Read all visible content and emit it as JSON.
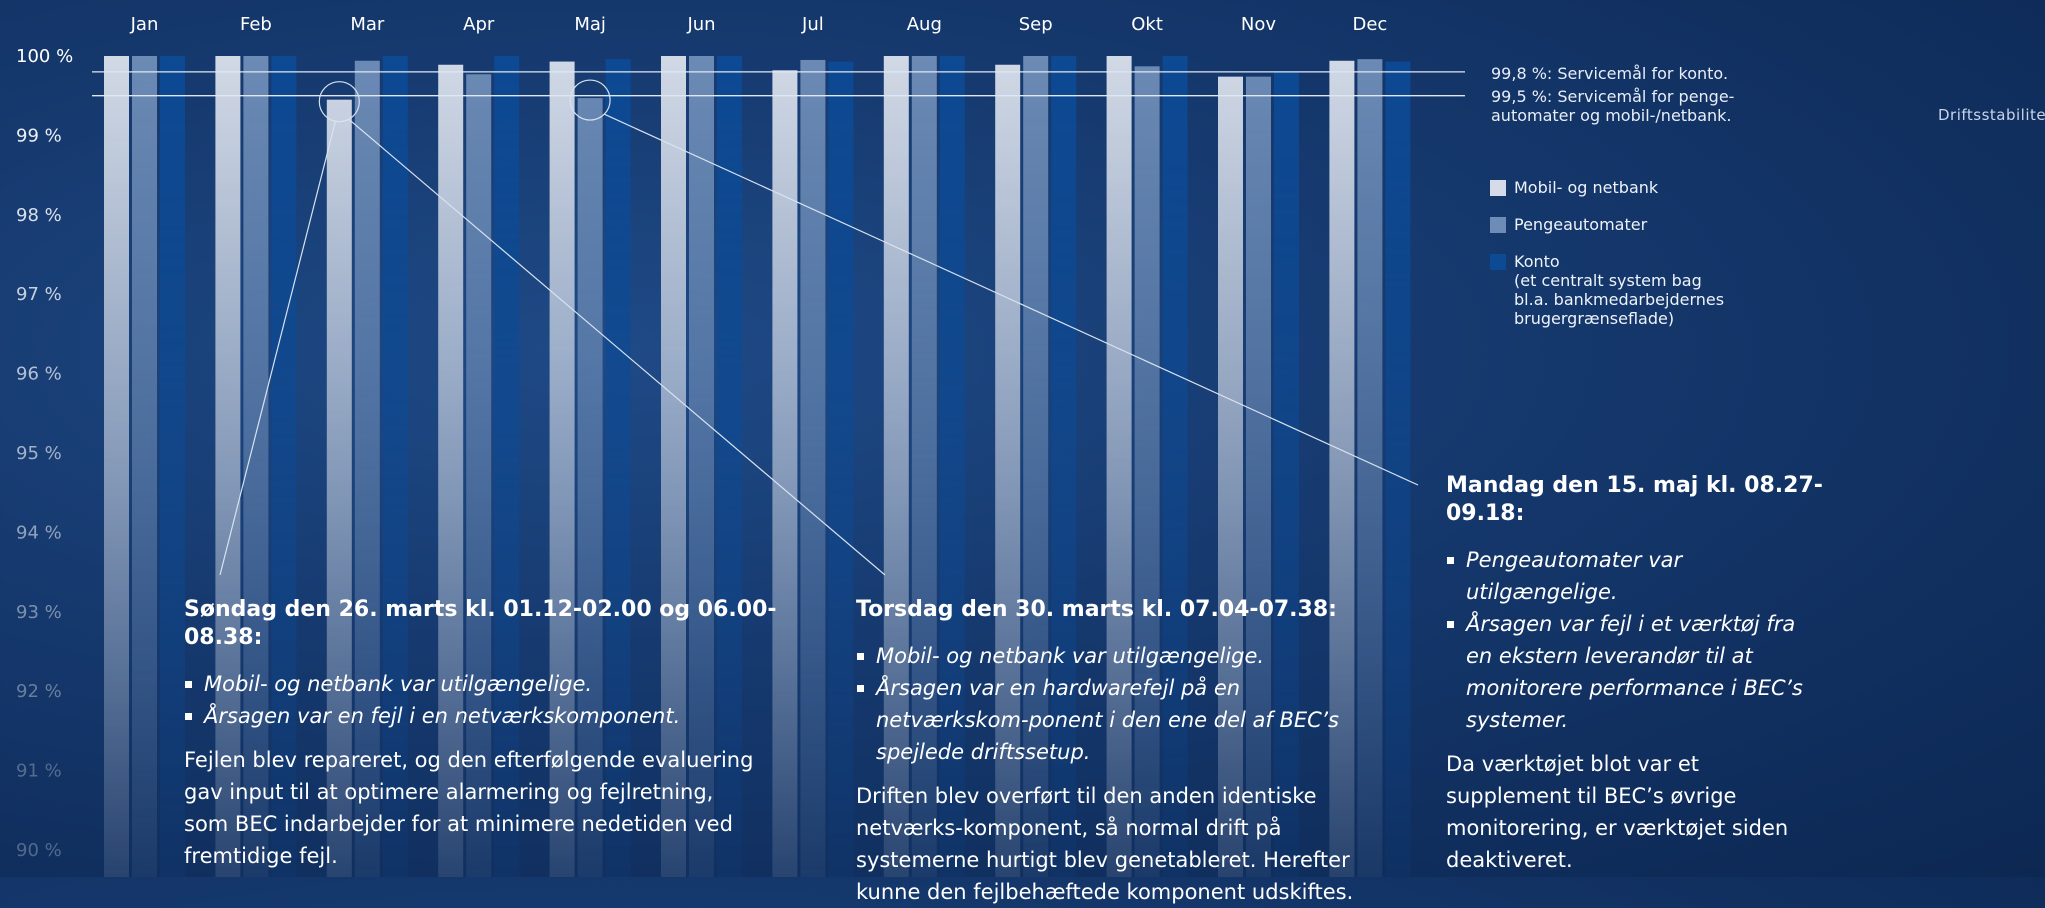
{
  "chart_data": {
    "type": "bar",
    "title": "",
    "xlabel": "",
    "ylabel": "",
    "categories": [
      "Jan",
      "Feb",
      "Mar",
      "Apr",
      "Maj",
      "Jun",
      "Jul",
      "Aug",
      "Sep",
      "Okt",
      "Nov",
      "Dec"
    ],
    "series": [
      {
        "name": "Mobil- og netbank",
        "color": "#d5dce8",
        "values": [
          100,
          100,
          99.45,
          99.89,
          99.93,
          100,
          99.82,
          100,
          99.89,
          100,
          99.74,
          99.94
        ]
      },
      {
        "name": "Pengeautomater",
        "color": "#6d8cb6",
        "values": [
          100,
          100,
          99.94,
          99.77,
          99.47,
          100,
          99.95,
          100,
          100,
          99.87,
          99.74,
          99.96
        ]
      },
      {
        "name": "Konto",
        "color": "#0d4a94",
        "values": [
          100,
          100,
          100,
          100,
          99.96,
          100,
          99.93,
          100,
          100,
          100,
          99.8,
          99.93
        ]
      }
    ],
    "ylim": [
      89.7,
      100.15
    ],
    "yticks": [
      100,
      99,
      98,
      97,
      96,
      95,
      94,
      93,
      92,
      91,
      90
    ],
    "ytick_labels": [
      "100 %",
      "99 %",
      "98 %",
      "97 %",
      "96 %",
      "95 %",
      "94 %",
      "93 %",
      "92 %",
      "91 %",
      "90 %"
    ],
    "reference_lines": [
      {
        "value": 99.8,
        "label": "99,8 %: Servicemål for konto."
      },
      {
        "value": 99.5,
        "label": "99,5 %: Servicemål for penge-\nautomater og mobil-/netbank."
      }
    ],
    "legend_position": "right",
    "grid": false,
    "highlights": [
      {
        "month": "Mar",
        "series": "Mobil- og netbank",
        "value": 99.45
      },
      {
        "month": "Maj",
        "series": "Pengeautomater",
        "value": 99.47
      }
    ]
  },
  "side_label": "Driftsstabilitet",
  "legend": {
    "items": [
      {
        "label": "Mobil- og netbank",
        "note": "",
        "color": "#d5dce8"
      },
      {
        "label": "Pengeautomater",
        "note": "",
        "color": "#6d8cb6"
      },
      {
        "label": "Konto",
        "note": "(et centralt system bag\nbl.a. bankmedarbejdernes\nbrugergrænseflade)",
        "color": "#0d4a94"
      }
    ]
  },
  "annotations": {
    "march26": {
      "title": "Søndag den 26. marts kl. 01.12-02.00 og 06.00-08.38:",
      "bullets": [
        "Mobil- og netbank var utilgængelige.",
        "Årsagen var en fejl i en netværkskomponent."
      ],
      "body": "Fejlen blev repareret, og den efterfølgende evaluering gav input til at optimere alarmering og fejlretning, som BEC indarbejder for at minimere nedetiden ved fremtidige fejl."
    },
    "march30": {
      "title": "Torsdag den 30. marts kl. 07.04-07.38:",
      "bullets": [
        "Mobil- og netbank var utilgængelige.",
        "Årsagen var en hardwarefejl på en netværkskom-ponent i den ene del af BEC’s spejlede driftssetup."
      ],
      "body": "Driften blev overført til den anden identiske netværks-komponent, så normal drift på systemerne hurtigt blev genetableret. Herefter kunne den fejlbehæftede komponent udskiftes."
    },
    "may15": {
      "title": "Mandag den 15. maj kl. 08.27-09.18:",
      "bullets": [
        "Pengeautomater var utilgængelige.",
        "Årsagen var fejl i et værktøj fra en ekstern leverandør til at monitorere performance i BEC’s systemer."
      ],
      "body": "Da værktøjet blot var et supplement til BEC’s øvrige monitorering, er værktøjet siden deaktiveret."
    }
  }
}
